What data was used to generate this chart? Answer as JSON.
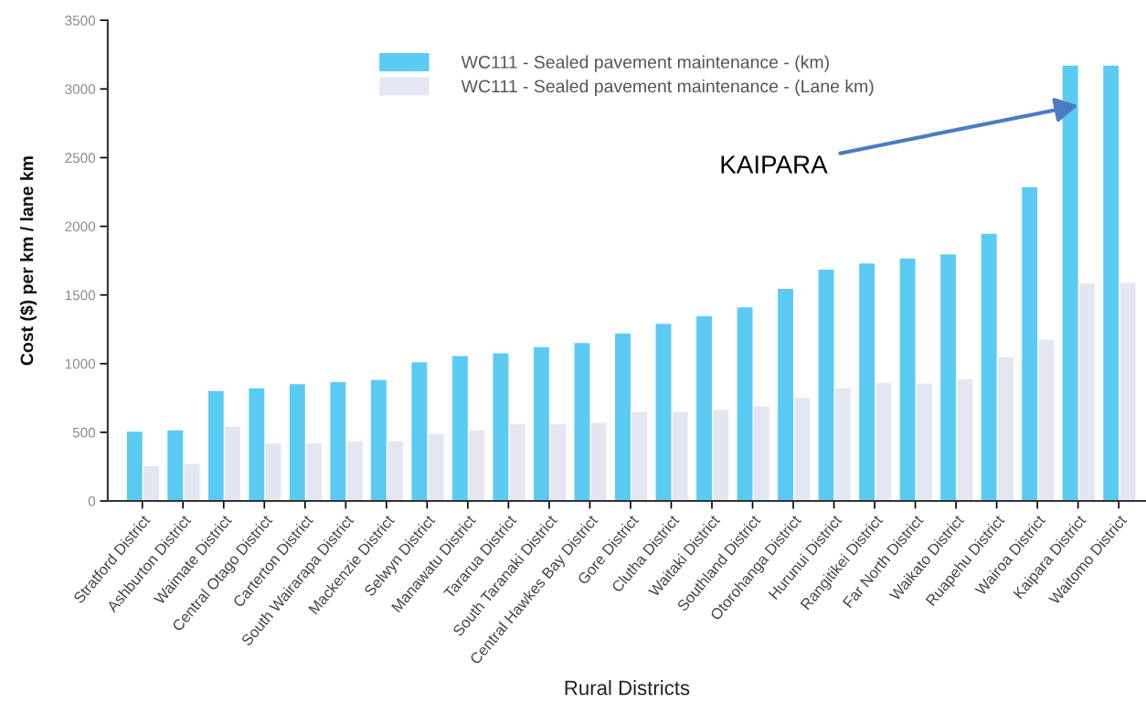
{
  "chart_data": {
    "type": "bar",
    "xlabel": "Rural Districts",
    "ylabel": "Cost ($) per km / lane km",
    "categories": [
      "Stratford District",
      "Ashburton District",
      "Waimate District",
      "Central Otago District",
      "Carterton District",
      "South Wairarapa District",
      "Mackenzie District",
      "Selwyn District",
      "Manawatu District",
      "Tararua District",
      "South Taranaki District",
      "Central Hawkes Bay District",
      "Gore District",
      "Clutha District",
      "Waitaki District",
      "Southland District",
      "Otorohanga District",
      "Hurunui District",
      "Rangitikei District",
      "Far North District",
      "Waikato District",
      "Ruapehu District",
      "Wairoa District",
      "Kaipara District",
      "Waitomo District"
    ],
    "series": [
      {
        "name": "WC111 - Sealed pavement maintenance - (km)",
        "color": "#5ccbf4",
        "values": [
          505,
          515,
          800,
          820,
          850,
          865,
          880,
          1010,
          1055,
          1075,
          1120,
          1150,
          1220,
          1290,
          1345,
          1410,
          1545,
          1685,
          1730,
          1765,
          1795,
          1945,
          2285,
          3170,
          3170
        ]
      },
      {
        "name": "WC111 - Sealed pavement maintenance - (Lane km)",
        "color": "#e4e7f2",
        "values": [
          255,
          270,
          540,
          420,
          420,
          435,
          435,
          490,
          515,
          560,
          560,
          570,
          650,
          650,
          665,
          690,
          750,
          820,
          860,
          855,
          885,
          1045,
          1175,
          1585,
          1590
        ]
      }
    ],
    "ylim": [
      0,
      3500
    ],
    "yticks": [
      0,
      500,
      1000,
      1500,
      2000,
      2500,
      3000,
      3500
    ],
    "grid": false,
    "legend": "top",
    "annotations": [
      {
        "text": "KAIPARA",
        "x": "Kaipara District",
        "y": 2880
      }
    ]
  }
}
